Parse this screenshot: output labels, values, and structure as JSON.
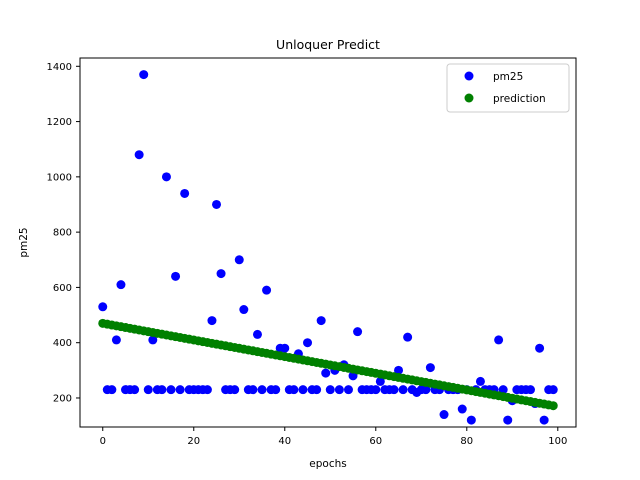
{
  "chart_data": {
    "type": "scatter",
    "title": "Unloquer Predict",
    "xlabel": "epochs",
    "ylabel": "pm25",
    "xlim": [
      -5,
      104
    ],
    "ylim": [
      95,
      1430
    ],
    "xticks": [
      0,
      20,
      40,
      60,
      80,
      100
    ],
    "yticks": [
      200,
      400,
      600,
      800,
      1000,
      1200,
      1400
    ],
    "grid": false,
    "legend": {
      "placement": "top-right"
    },
    "series": [
      {
        "name": "pm25",
        "color": "#0000ff",
        "x": [
          0,
          1,
          2,
          3,
          4,
          5,
          6,
          7,
          8,
          9,
          10,
          11,
          12,
          13,
          14,
          15,
          16,
          17,
          18,
          19,
          20,
          21,
          22,
          23,
          24,
          25,
          26,
          27,
          28,
          29,
          30,
          31,
          32,
          33,
          34,
          35,
          36,
          37,
          38,
          39,
          40,
          41,
          42,
          43,
          44,
          45,
          46,
          47,
          48,
          49,
          50,
          51,
          52,
          53,
          54,
          55,
          56,
          57,
          58,
          59,
          60,
          61,
          62,
          63,
          64,
          65,
          66,
          67,
          68,
          69,
          70,
          71,
          72,
          73,
          74,
          75,
          76,
          77,
          78,
          79,
          80,
          81,
          82,
          83,
          84,
          85,
          86,
          87,
          88,
          89,
          90,
          91,
          92,
          93,
          94,
          95,
          96,
          97,
          98,
          99
        ],
        "y": [
          530,
          230,
          230,
          410,
          610,
          230,
          230,
          230,
          1080,
          1370,
          230,
          410,
          230,
          230,
          1000,
          230,
          640,
          230,
          940,
          230,
          230,
          230,
          230,
          230,
          480,
          900,
          650,
          230,
          230,
          230,
          700,
          520,
          230,
          230,
          430,
          230,
          590,
          230,
          230,
          380,
          380,
          230,
          230,
          360,
          230,
          400,
          230,
          230,
          480,
          290,
          230,
          300,
          230,
          320,
          230,
          280,
          440,
          230,
          230,
          230,
          230,
          260,
          230,
          230,
          230,
          300,
          230,
          420,
          230,
          220,
          230,
          230,
          310,
          230,
          230,
          140,
          230,
          230,
          230,
          160,
          230,
          120,
          230,
          260,
          230,
          230,
          230,
          410,
          230,
          120,
          190,
          230,
          230,
          230,
          230,
          180,
          380,
          120,
          230,
          230
        ]
      },
      {
        "name": "prediction",
        "color": "#008000",
        "x_start": 0,
        "x_end": 99,
        "y_start": 470,
        "y_end": 172
      }
    ]
  }
}
